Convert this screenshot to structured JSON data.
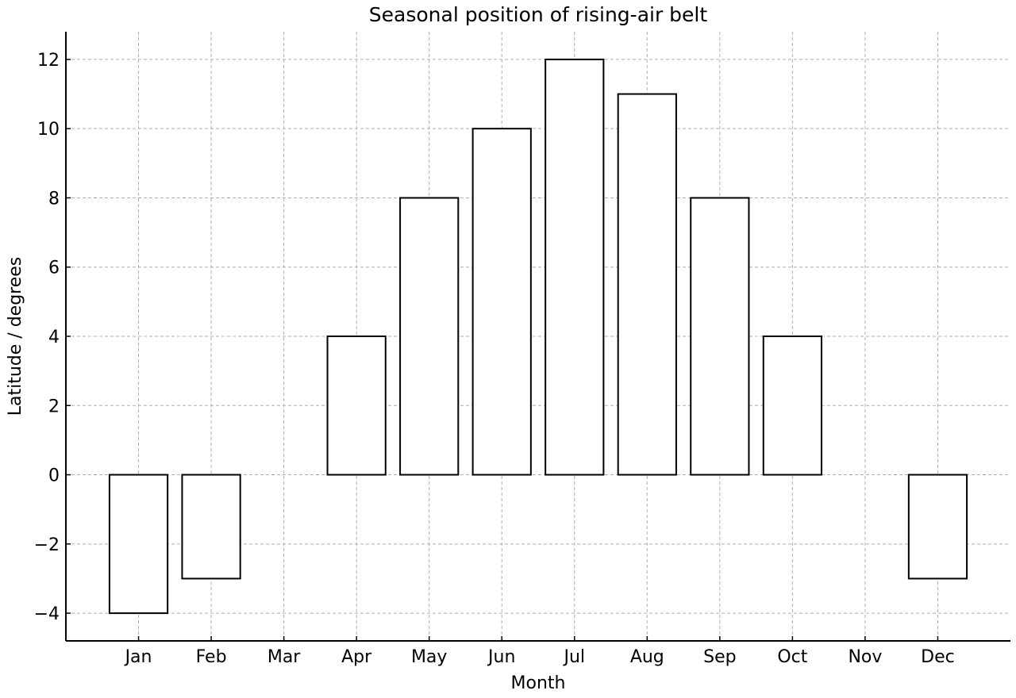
{
  "chart_data": {
    "type": "bar",
    "title": "Seasonal position of rising-air belt",
    "xlabel": "Month",
    "ylabel": "Latitude / degrees",
    "categories": [
      "Jan",
      "Feb",
      "Mar",
      "Apr",
      "May",
      "Jun",
      "Jul",
      "Aug",
      "Sep",
      "Oct",
      "Nov",
      "Dec"
    ],
    "values": [
      -4,
      -3,
      0,
      4,
      8,
      10,
      12,
      11,
      8,
      4,
      0,
      -3
    ],
    "ylim": [
      -4.8,
      12.8
    ],
    "yticks": [
      -4,
      -2,
      0,
      2,
      4,
      6,
      8,
      10,
      12
    ],
    "ytick_labels": [
      "−4",
      "−2",
      "0",
      "2",
      "4",
      "6",
      "8",
      "10",
      "12"
    ],
    "grid": true,
    "legend": "none",
    "colors": {
      "bar_fill": "#ffffff",
      "bar_edge": "#000000",
      "grid": "#b0b0b0"
    }
  }
}
